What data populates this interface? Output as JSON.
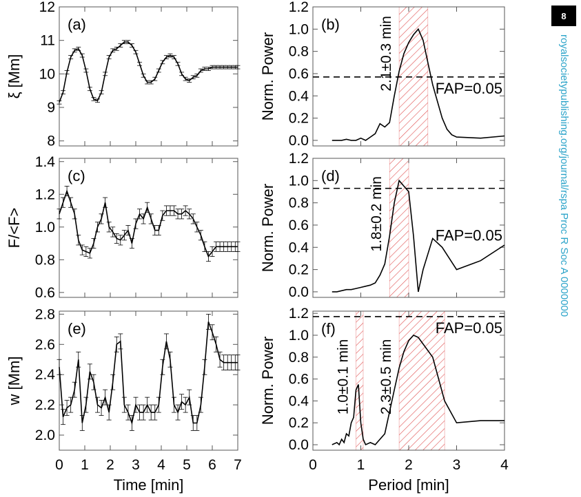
{
  "page_badge": "8",
  "side_url": "royalsocietypublishing.org/journal/rspa  Proc R Soc A 0000000",
  "colors": {
    "hatch": "#e05050",
    "line": "#000000",
    "url": "#2aa3c9"
  },
  "chart_data": [
    {
      "type": "line",
      "panel_label": "(a)",
      "ylabel": "ξ [Mm]",
      "xlabel": "",
      "xlim": [
        0,
        7
      ],
      "ylim": [
        7.85,
        12
      ],
      "yticks": [
        8,
        9,
        10,
        11,
        12
      ],
      "xticks": [
        0,
        1,
        2,
        3,
        4,
        5,
        6,
        7
      ],
      "show_xtick_labels": false,
      "x": [
        0,
        0.15,
        0.3,
        0.45,
        0.6,
        0.75,
        0.9,
        1.05,
        1.2,
        1.35,
        1.5,
        1.65,
        1.8,
        1.95,
        2.1,
        2.25,
        2.4,
        2.55,
        2.7,
        2.85,
        3.0,
        3.15,
        3.3,
        3.45,
        3.6,
        3.75,
        3.9,
        4.05,
        4.2,
        4.35,
        4.5,
        4.65,
        4.8,
        4.95,
        5.1,
        5.25,
        5.4,
        5.55,
        5.7,
        5.85,
        6.0,
        6.15,
        6.3,
        6.45,
        6.6,
        6.75,
        6.9,
        7.0
      ],
      "y": [
        9.15,
        9.45,
        10.05,
        10.5,
        10.7,
        10.75,
        10.55,
        10.1,
        9.55,
        9.25,
        9.2,
        9.45,
        10.0,
        10.5,
        10.7,
        10.75,
        10.85,
        10.95,
        10.95,
        10.85,
        10.65,
        10.3,
        9.95,
        9.75,
        9.75,
        9.85,
        10.1,
        10.35,
        10.5,
        10.55,
        10.5,
        10.3,
        10.0,
        9.85,
        9.8,
        9.9,
        9.95,
        10.1,
        10.15,
        10.15,
        10.2,
        10.2,
        10.2,
        10.2,
        10.2,
        10.2,
        10.2,
        10.2
      ],
      "yerr": 0.05
    },
    {
      "type": "line",
      "panel_label": "(b)",
      "ylabel": "Norm. Power",
      "xlabel": "",
      "xlim": [
        0,
        4
      ],
      "ylim": [
        -0.05,
        1.2
      ],
      "yticks": [
        0.0,
        0.2,
        0.4,
        0.6,
        0.8,
        1.0,
        1.2
      ],
      "xticks": [
        0,
        1,
        2,
        3,
        4
      ],
      "show_xtick_labels": false,
      "x": [
        0.4,
        0.5,
        0.6,
        0.7,
        0.8,
        0.9,
        1.0,
        1.1,
        1.2,
        1.3,
        1.4,
        1.5,
        1.6,
        1.7,
        1.8,
        1.9,
        2.0,
        2.1,
        2.2,
        2.3,
        2.4,
        2.5,
        2.6,
        2.7,
        2.8,
        2.9,
        3.0,
        3.5,
        4.0
      ],
      "y": [
        0.0,
        0.0,
        0.0,
        0.01,
        0.0,
        0.0,
        0.02,
        0.0,
        0.03,
        0.06,
        0.15,
        0.12,
        0.16,
        0.4,
        0.62,
        0.78,
        0.88,
        0.95,
        1.0,
        0.9,
        0.7,
        0.5,
        0.35,
        0.2,
        0.1,
        0.05,
        0.03,
        0.02,
        0.04
      ],
      "fap_level": 0.57,
      "fap_label": "FAP=0.05",
      "bands": [
        {
          "xmin": 1.8,
          "xmax": 2.4,
          "label": "2.1±0.3 min"
        }
      ]
    },
    {
      "type": "line",
      "panel_label": "(c)",
      "ylabel": "F/<F>",
      "xlabel": "",
      "xlim": [
        0,
        7
      ],
      "ylim": [
        0.57,
        1.42
      ],
      "yticks": [
        0.6,
        0.8,
        1.0,
        1.2,
        1.4
      ],
      "xticks": [
        0,
        1,
        2,
        3,
        4,
        5,
        6,
        7
      ],
      "show_xtick_labels": false,
      "x": [
        0,
        0.15,
        0.3,
        0.45,
        0.6,
        0.75,
        0.9,
        1.05,
        1.2,
        1.35,
        1.5,
        1.65,
        1.8,
        1.95,
        2.1,
        2.25,
        2.4,
        2.55,
        2.7,
        2.85,
        3.0,
        3.15,
        3.3,
        3.45,
        3.6,
        3.75,
        3.9,
        4.05,
        4.2,
        4.35,
        4.5,
        4.65,
        4.8,
        4.95,
        5.1,
        5.25,
        5.4,
        5.55,
        5.7,
        5.85,
        6.0,
        6.15,
        6.3,
        6.45,
        6.6,
        6.75,
        6.9,
        7.0
      ],
      "y": [
        1.08,
        1.15,
        1.22,
        1.15,
        1.08,
        0.92,
        0.86,
        0.85,
        0.84,
        0.9,
        1.0,
        1.05,
        1.15,
        1.0,
        0.97,
        0.93,
        0.92,
        0.95,
        0.98,
        0.9,
        1.02,
        1.08,
        1.05,
        1.12,
        1.05,
        0.98,
        0.98,
        1.07,
        1.1,
        1.1,
        1.1,
        1.08,
        1.08,
        1.1,
        1.08,
        1.05,
        1.0,
        0.95,
        0.88,
        0.82,
        0.85,
        0.88,
        0.88,
        0.88,
        0.88,
        0.88,
        0.88,
        0.88
      ],
      "yerr": 0.03
    },
    {
      "type": "line",
      "panel_label": "(d)",
      "ylabel": "Norm. Power",
      "xlabel": "",
      "xlim": [
        0,
        4
      ],
      "ylim": [
        -0.05,
        1.2
      ],
      "yticks": [
        0.0,
        0.2,
        0.4,
        0.6,
        0.8,
        1.0,
        1.2
      ],
      "xticks": [
        0,
        1,
        2,
        3,
        4
      ],
      "show_xtick_labels": false,
      "x": [
        0.4,
        0.5,
        0.6,
        0.7,
        0.8,
        0.9,
        1.0,
        1.1,
        1.2,
        1.3,
        1.4,
        1.5,
        1.6,
        1.7,
        1.8,
        1.9,
        2.0,
        2.1,
        2.2,
        2.3,
        2.5,
        2.7,
        3.0,
        3.5,
        4.0
      ],
      "y": [
        0.0,
        0.0,
        0.01,
        0.02,
        0.02,
        0.03,
        0.04,
        0.05,
        0.06,
        0.08,
        0.15,
        0.25,
        0.5,
        0.8,
        1.0,
        0.95,
        0.9,
        0.5,
        0.0,
        0.2,
        0.48,
        0.4,
        0.2,
        0.28,
        0.42
      ],
      "fap_level": 0.93,
      "fap_label": "FAP=0.05",
      "bands": [
        {
          "xmin": 1.6,
          "xmax": 2.0,
          "label": "1.8±0.2 min"
        }
      ]
    },
    {
      "type": "line",
      "panel_label": "(e)",
      "ylabel": "w [Mm]",
      "xlabel": "Time [min]",
      "xlim": [
        0,
        7
      ],
      "ylim": [
        1.9,
        2.82
      ],
      "yticks": [
        2.0,
        2.2,
        2.4,
        2.6,
        2.8
      ],
      "xticks": [
        0,
        1,
        2,
        3,
        4,
        5,
        6,
        7
      ],
      "show_xtick_labels": true,
      "x": [
        0,
        0.15,
        0.3,
        0.45,
        0.6,
        0.75,
        0.9,
        1.05,
        1.2,
        1.35,
        1.5,
        1.65,
        1.8,
        1.95,
        2.1,
        2.25,
        2.4,
        2.55,
        2.7,
        2.85,
        3.0,
        3.15,
        3.3,
        3.45,
        3.6,
        3.75,
        3.9,
        4.05,
        4.2,
        4.35,
        4.5,
        4.65,
        4.8,
        4.95,
        5.1,
        5.25,
        5.4,
        5.55,
        5.7,
        5.85,
        6.0,
        6.15,
        6.3,
        6.45,
        6.6,
        6.75,
        6.9,
        7.0
      ],
      "y": [
        2.45,
        2.12,
        2.18,
        2.2,
        2.3,
        2.5,
        2.08,
        2.2,
        2.42,
        2.35,
        2.2,
        2.18,
        2.25,
        2.15,
        2.35,
        2.6,
        2.62,
        2.2,
        2.15,
        2.08,
        2.2,
        2.15,
        2.15,
        2.2,
        2.15,
        2.15,
        2.2,
        2.45,
        2.62,
        2.5,
        2.2,
        2.15,
        2.22,
        2.2,
        2.25,
        2.08,
        2.08,
        2.2,
        2.45,
        2.75,
        2.68,
        2.6,
        2.5,
        2.48,
        2.48,
        2.48,
        2.48,
        2.48
      ],
      "yerr": 0.05
    },
    {
      "type": "line",
      "panel_label": "(f)",
      "ylabel": "Norm. Power",
      "xlabel": "Period [min]",
      "xlim": [
        0,
        4
      ],
      "ylim": [
        -0.05,
        1.22
      ],
      "yticks": [
        0.0,
        0.2,
        0.4,
        0.6,
        0.8,
        1.0,
        1.2
      ],
      "xticks": [
        0,
        1,
        2,
        3,
        4
      ],
      "show_xtick_labels": true,
      "x": [
        0.4,
        0.5,
        0.55,
        0.6,
        0.65,
        0.7,
        0.75,
        0.8,
        0.85,
        0.9,
        0.95,
        1.0,
        1.05,
        1.1,
        1.2,
        1.3,
        1.4,
        1.5,
        1.6,
        1.7,
        1.8,
        1.9,
        2.0,
        2.1,
        2.2,
        2.5,
        2.75,
        3.0,
        3.5,
        4.0
      ],
      "y": [
        0.0,
        0.02,
        0.0,
        0.05,
        0.02,
        0.1,
        0.08,
        0.2,
        0.25,
        0.5,
        0.55,
        0.2,
        0.05,
        0.0,
        0.02,
        0.0,
        0.05,
        0.1,
        0.3,
        0.5,
        0.7,
        0.85,
        0.95,
        1.0,
        0.98,
        0.8,
        0.4,
        0.2,
        0.22,
        0.22
      ],
      "fap_level": 1.17,
      "fap_label": "FAP=0.05",
      "bands": [
        {
          "xmin": 0.9,
          "xmax": 1.05,
          "label": "1.0±0.1 min"
        },
        {
          "xmin": 1.8,
          "xmax": 2.75,
          "label": "2.3±0.5 min"
        }
      ]
    }
  ]
}
